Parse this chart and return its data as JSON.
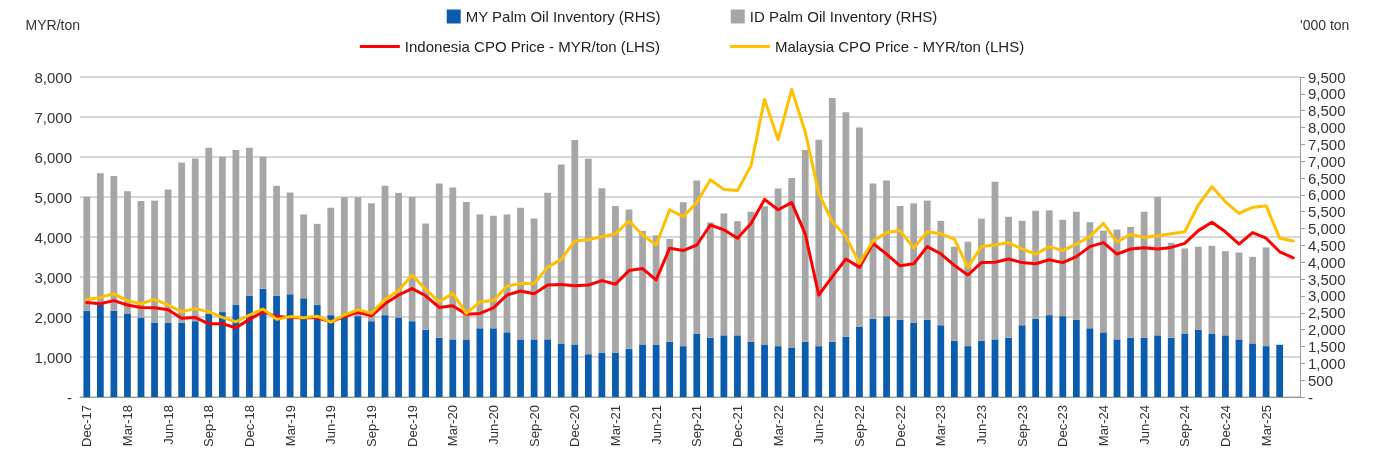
{
  "chart_data": {
    "type": "bar",
    "ylabel": "MYR/ton",
    "y2label": "'000 ton",
    "categories": [
      "Dec-17",
      null,
      null,
      "Mar-18",
      null,
      null,
      "Jun-18",
      null,
      null,
      "Sep-18",
      null,
      null,
      "Dec-18",
      null,
      null,
      "Mar-19",
      null,
      null,
      "Jun-19",
      null,
      null,
      "Sep-19",
      null,
      null,
      "Dec-19",
      null,
      null,
      "Mar-20",
      null,
      null,
      "Jun-20",
      null,
      null,
      "Sep-20",
      null,
      null,
      "Dec-20",
      null,
      null,
      "Mar-21",
      null,
      null,
      "Jun-21",
      null,
      null,
      "Sep-21",
      null,
      null,
      "Dec-21",
      null,
      null,
      "Mar-22",
      null,
      null,
      "Jun-22",
      null,
      null,
      "Sep-22",
      null,
      null,
      "Dec-22",
      null,
      null,
      "Mar-23",
      null,
      null,
      "Jun-23",
      null,
      null,
      "Sep-23",
      null,
      null,
      "Dec-23",
      null,
      null,
      "Mar-24",
      null,
      null,
      "Jun-24",
      null,
      null,
      "Sep-24",
      null,
      null,
      "Dec-24",
      null,
      null,
      "Mar-25",
      null,
      null
    ],
    "series": [
      {
        "name": "MY Palm Oil Inventory (RHS)",
        "axis": "y2",
        "color": "#0b5cad",
        "values": [
          2560,
          2750,
          2560,
          2480,
          2360,
          2210,
          2210,
          2210,
          2250,
          2480,
          2520,
          2730,
          3010,
          3210,
          3010,
          3050,
          2930,
          2730,
          2430,
          2380,
          2400,
          2250,
          2430,
          2360,
          2250,
          2000,
          1760,
          1710,
          1710,
          2040,
          2040,
          1920,
          1710,
          1710,
          1710,
          1590,
          1560,
          1270,
          1320,
          1320,
          1430,
          1560,
          1560,
          1640,
          1510,
          1870,
          1760,
          1830,
          1830,
          1640,
          1560,
          1510,
          1470,
          1640,
          1510,
          1640,
          1790,
          2090,
          2320,
          2400,
          2290,
          2210,
          2290,
          2130,
          1670,
          1510,
          1670,
          1710,
          1760,
          2130,
          2320,
          2430,
          2400,
          2290,
          2040,
          1920,
          1710,
          1760,
          1760,
          1830,
          1760,
          1870,
          1990,
          1870,
          1830,
          1710,
          1590,
          1510,
          1550,
          null
        ]
      },
      {
        "name": "ID Palm Oil Inventory (RHS)",
        "axis": "y2",
        "color": "#a6a6a6",
        "values": [
          3380,
          3890,
          4000,
          3630,
          3460,
          3620,
          3950,
          4750,
          4830,
          4920,
          4610,
          4600,
          4390,
          3920,
          3260,
          3020,
          2490,
          2410,
          3190,
          3550,
          3530,
          3500,
          3840,
          3700,
          3690,
          3150,
          4580,
          4510,
          4080,
          3380,
          3340,
          3500,
          3910,
          3590,
          4350,
          5310,
          6070,
          5800,
          4880,
          4350,
          4140,
          3370,
          3240,
          3050,
          4270,
          4560,
          3420,
          3620,
          3390,
          3860,
          4100,
          4680,
          5030,
          5690,
          6130,
          7240,
          6660,
          5910,
          4020,
          4030,
          3380,
          3540,
          3540,
          3100,
          2790,
          3100,
          3630,
          4680,
          3590,
          3100,
          3210,
          3110,
          2860,
          3210,
          3150,
          3020,
          3260,
          3290,
          3740,
          4110,
          2820,
          2540,
          2470,
          2620,
          2500,
          2580,
          2570,
          2930,
          null,
          null
        ]
      },
      {
        "name": "Indonesia CPO Price - MYR/ton (LHS)",
        "type": "line",
        "color": "#ff0000",
        "values": [
          2360,
          2330,
          2410,
          2300,
          2240,
          2230,
          2180,
          1970,
          1990,
          1830,
          1830,
          1730,
          1940,
          2130,
          2010,
          1990,
          1980,
          1980,
          1880,
          2010,
          2120,
          2030,
          2330,
          2550,
          2710,
          2530,
          2240,
          2280,
          2070,
          2090,
          2230,
          2550,
          2650,
          2580,
          2800,
          2810,
          2780,
          2800,
          2910,
          2820,
          3160,
          3210,
          2930,
          3720,
          3660,
          3800,
          4300,
          4180,
          3970,
          4340,
          4940,
          4680,
          4860,
          4080,
          2550,
          3010,
          3450,
          3240,
          3840,
          3570,
          3280,
          3330,
          3760,
          3580,
          3290,
          3050,
          3360,
          3370,
          3450,
          3360,
          3330,
          3430,
          3360,
          3510,
          3760,
          3860,
          3570,
          3700,
          3730,
          3700,
          3740,
          3840,
          4160,
          4370,
          4130,
          3820,
          4110,
          3970,
          3630,
          3480
        ]
      },
      {
        "name": "Malaysia CPO Price - MYR/ton (LHS)",
        "type": "line",
        "color": "#ffc000",
        "values": [
          2440,
          2490,
          2580,
          2410,
          2330,
          2440,
          2300,
          2130,
          2210,
          2130,
          1990,
          1880,
          2050,
          2200,
          1940,
          2010,
          1980,
          2020,
          1870,
          2050,
          2180,
          2090,
          2440,
          2660,
          3050,
          2690,
          2380,
          2590,
          2090,
          2380,
          2410,
          2770,
          2840,
          2840,
          3240,
          3440,
          3900,
          3930,
          4010,
          4080,
          4400,
          4050,
          3800,
          4680,
          4510,
          4860,
          5430,
          5190,
          5160,
          5780,
          7440,
          6430,
          7690,
          6630,
          5090,
          4380,
          4010,
          3340,
          3900,
          4110,
          4160,
          3720,
          4130,
          4080,
          3950,
          3240,
          3760,
          3800,
          3860,
          3700,
          3570,
          3760,
          3660,
          3820,
          4010,
          4340,
          3870,
          4070,
          3990,
          4030,
          4080,
          4130,
          4800,
          5260,
          4880,
          4590,
          4740,
          4780,
          3970,
          3900
        ]
      }
    ],
    "stacked": true,
    "ylim": [
      0,
      8000
    ],
    "yticks": [
      {
        "value": 0,
        "label": "-"
      },
      {
        "value": 1000,
        "label": "1,000"
      },
      {
        "value": 2000,
        "label": "2,000"
      },
      {
        "value": 3000,
        "label": "3,000"
      },
      {
        "value": 4000,
        "label": "4,000"
      },
      {
        "value": 5000,
        "label": "5,000"
      },
      {
        "value": 6000,
        "label": "6,000"
      },
      {
        "value": 7000,
        "label": "7,000"
      },
      {
        "value": 8000,
        "label": "8,000"
      }
    ],
    "y2lim": [
      0,
      9500
    ],
    "y2ticks": [
      {
        "value": 0,
        "label": "-"
      },
      500,
      {
        "value": 1000,
        "label": "1,000"
      },
      {
        "value": 1500,
        "label": "1,500"
      },
      {
        "value": 2000,
        "label": "2,000"
      },
      {
        "value": 2500,
        "label": "2,500"
      },
      {
        "value": 3000,
        "label": "3,000"
      },
      {
        "value": 3500,
        "label": "3,500"
      },
      {
        "value": 4000,
        "label": "4,000"
      },
      {
        "value": 4500,
        "label": "4,500"
      },
      {
        "value": 5000,
        "label": "5,000"
      },
      {
        "value": 5500,
        "label": "5,500"
      },
      {
        "value": 6000,
        "label": "6,000"
      },
      {
        "value": 6500,
        "label": "6,500"
      },
      {
        "value": 7000,
        "label": "7,000"
      },
      {
        "value": 7500,
        "label": "7,500"
      },
      {
        "value": 8000,
        "label": "8,000"
      },
      {
        "value": 8500,
        "label": "8,500"
      },
      {
        "value": 9000,
        "label": "9,000"
      },
      {
        "value": 9500,
        "label": "9,500"
      }
    ],
    "grid": "y",
    "legend": "top",
    "marker": "none",
    "line_style": "solid"
  }
}
